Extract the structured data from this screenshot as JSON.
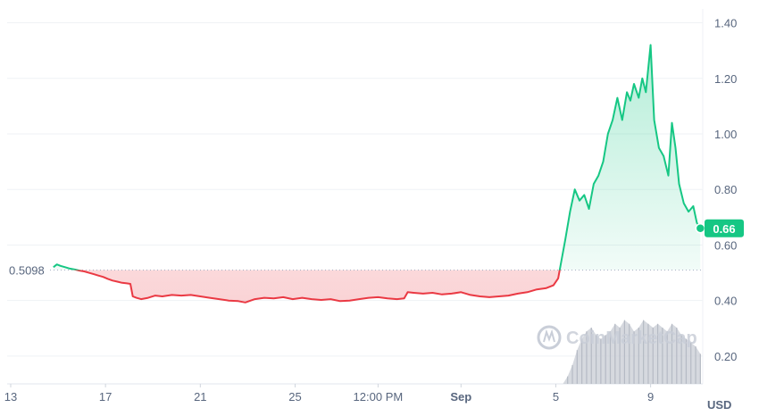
{
  "watermark": "CoinMarketCap",
  "chart_data": {
    "type": "line",
    "currency_label": "USD",
    "reference_value": 0.5098,
    "reference_label": "0.5098",
    "current_value": 0.66,
    "current_label": "0.66",
    "ylim": [
      0.1,
      1.45
    ],
    "y_ticks": [
      {
        "value": 0.2,
        "label": "0.20"
      },
      {
        "value": 0.4,
        "label": "0.40"
      },
      {
        "value": 0.6,
        "label": "0.60"
      },
      {
        "value": 0.8,
        "label": "0.80"
      },
      {
        "value": 1.0,
        "label": "1.00"
      },
      {
        "value": 1.2,
        "label": "1.20"
      },
      {
        "value": 1.4,
        "label": "1.40"
      }
    ],
    "x_ticks": [
      {
        "t": 0,
        "label": "13",
        "bold": false
      },
      {
        "t": 4,
        "label": "17",
        "bold": false
      },
      {
        "t": 8,
        "label": "21",
        "bold": false
      },
      {
        "t": 12,
        "label": "25",
        "bold": false
      },
      {
        "t": 15.5,
        "label": "12:00 PM",
        "bold": false
      },
      {
        "t": 19,
        "label": "Sep",
        "bold": true
      },
      {
        "t": 23,
        "label": "5",
        "bold": false
      },
      {
        "t": 27,
        "label": "9",
        "bold": false
      }
    ],
    "xlim": [
      -0.15,
      29.2
    ],
    "colors": {
      "up": "#16c784",
      "down": "#ea3943",
      "volume": "#c8ccd4",
      "grid": "#eff2f5"
    },
    "price": [
      [
        1.8,
        0.52
      ],
      [
        1.95,
        0.53
      ],
      [
        2.1,
        0.525
      ],
      [
        2.3,
        0.52
      ],
      [
        2.5,
        0.515
      ],
      [
        2.7,
        0.512
      ],
      [
        2.9,
        0.508
      ],
      [
        3.1,
        0.505
      ],
      [
        3.3,
        0.5
      ],
      [
        3.5,
        0.495
      ],
      [
        3.7,
        0.49
      ],
      [
        3.9,
        0.485
      ],
      [
        4.1,
        0.478
      ],
      [
        4.3,
        0.472
      ],
      [
        4.5,
        0.468
      ],
      [
        4.7,
        0.464
      ],
      [
        4.9,
        0.462
      ],
      [
        5.05,
        0.46
      ],
      [
        5.15,
        0.415
      ],
      [
        5.3,
        0.41
      ],
      [
        5.5,
        0.405
      ],
      [
        5.8,
        0.41
      ],
      [
        6.1,
        0.418
      ],
      [
        6.4,
        0.415
      ],
      [
        6.8,
        0.42
      ],
      [
        7.2,
        0.418
      ],
      [
        7.6,
        0.42
      ],
      [
        8,
        0.415
      ],
      [
        8.4,
        0.41
      ],
      [
        8.8,
        0.405
      ],
      [
        9.2,
        0.4
      ],
      [
        9.6,
        0.398
      ],
      [
        9.9,
        0.393
      ],
      [
        10.3,
        0.405
      ],
      [
        10.7,
        0.41
      ],
      [
        11.1,
        0.408
      ],
      [
        11.5,
        0.412
      ],
      [
        11.9,
        0.405
      ],
      [
        12.3,
        0.41
      ],
      [
        12.7,
        0.405
      ],
      [
        13.1,
        0.402
      ],
      [
        13.5,
        0.405
      ],
      [
        13.9,
        0.398
      ],
      [
        14.3,
        0.4
      ],
      [
        14.7,
        0.405
      ],
      [
        15.1,
        0.41
      ],
      [
        15.5,
        0.412
      ],
      [
        15.9,
        0.408
      ],
      [
        16.3,
        0.405
      ],
      [
        16.6,
        0.408
      ],
      [
        16.75,
        0.43
      ],
      [
        17,
        0.428
      ],
      [
        17.4,
        0.425
      ],
      [
        17.8,
        0.428
      ],
      [
        18.2,
        0.422
      ],
      [
        18.6,
        0.425
      ],
      [
        19,
        0.43
      ],
      [
        19.4,
        0.42
      ],
      [
        19.8,
        0.415
      ],
      [
        20.2,
        0.412
      ],
      [
        20.6,
        0.415
      ],
      [
        21,
        0.418
      ],
      [
        21.4,
        0.425
      ],
      [
        21.8,
        0.43
      ],
      [
        22.2,
        0.44
      ],
      [
        22.6,
        0.445
      ],
      [
        22.9,
        0.455
      ],
      [
        23.1,
        0.48
      ],
      [
        23.25,
        0.55
      ],
      [
        23.4,
        0.62
      ],
      [
        23.6,
        0.72
      ],
      [
        23.8,
        0.8
      ],
      [
        24,
        0.76
      ],
      [
        24.2,
        0.78
      ],
      [
        24.4,
        0.73
      ],
      [
        24.6,
        0.82
      ],
      [
        24.8,
        0.85
      ],
      [
        25,
        0.9
      ],
      [
        25.2,
        1.0
      ],
      [
        25.4,
        1.05
      ],
      [
        25.6,
        1.13
      ],
      [
        25.8,
        1.05
      ],
      [
        26,
        1.15
      ],
      [
        26.15,
        1.12
      ],
      [
        26.3,
        1.18
      ],
      [
        26.5,
        1.13
      ],
      [
        26.65,
        1.2
      ],
      [
        26.8,
        1.15
      ],
      [
        27,
        1.32
      ],
      [
        27.15,
        1.05
      ],
      [
        27.35,
        0.95
      ],
      [
        27.55,
        0.92
      ],
      [
        27.75,
        0.85
      ],
      [
        27.9,
        1.04
      ],
      [
        28.05,
        0.95
      ],
      [
        28.2,
        0.82
      ],
      [
        28.4,
        0.75
      ],
      [
        28.6,
        0.72
      ],
      [
        28.8,
        0.74
      ],
      [
        28.95,
        0.68
      ],
      [
        29.1,
        0.66
      ]
    ],
    "volume": [
      [
        23.3,
        0.0
      ],
      [
        23.5,
        0.02
      ],
      [
        23.7,
        0.05
      ],
      [
        23.9,
        0.09
      ],
      [
        24.1,
        0.12
      ],
      [
        24.3,
        0.14
      ],
      [
        24.5,
        0.15
      ],
      [
        24.7,
        0.13
      ],
      [
        24.9,
        0.12
      ],
      [
        25.1,
        0.13
      ],
      [
        25.3,
        0.14
      ],
      [
        25.5,
        0.16
      ],
      [
        25.7,
        0.15
      ],
      [
        25.9,
        0.17
      ],
      [
        26.1,
        0.16
      ],
      [
        26.3,
        0.14
      ],
      [
        26.5,
        0.15
      ],
      [
        26.7,
        0.17
      ],
      [
        26.9,
        0.16
      ],
      [
        27.1,
        0.15
      ],
      [
        27.3,
        0.16
      ],
      [
        27.5,
        0.15
      ],
      [
        27.7,
        0.14
      ],
      [
        27.9,
        0.16
      ],
      [
        28.1,
        0.15
      ],
      [
        28.3,
        0.13
      ],
      [
        28.5,
        0.12
      ],
      [
        28.7,
        0.11
      ],
      [
        28.9,
        0.1
      ],
      [
        29.1,
        0.08
      ]
    ]
  }
}
